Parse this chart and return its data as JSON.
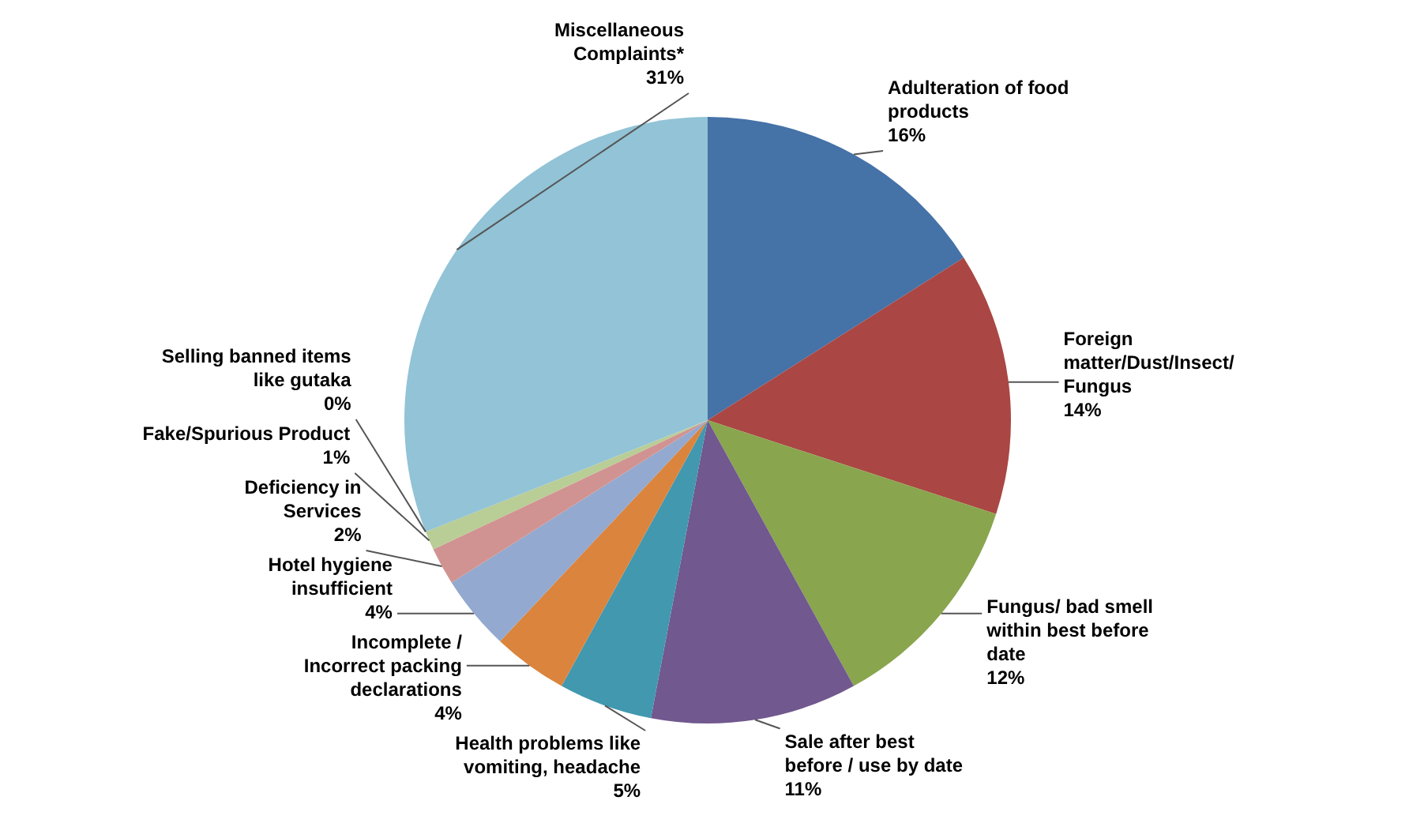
{
  "chart_data": {
    "type": "pie",
    "categories": [
      "Adulteration of food products",
      "Foreign matter/Dust/Insect/ Fungus",
      "Fungus/ bad smell within best before date",
      "Sale after best before / use by date",
      "Health problems like vomiting, headache",
      "Incomplete / Incorrect packing declarations",
      "Hotel hygiene insufficient",
      "Deficiency in Services",
      "Fake/Spurious Product",
      "Selling banned items like gutaka",
      "Miscellaneous Complaints*"
    ],
    "values": [
      16,
      14,
      12,
      11,
      5,
      4,
      4,
      2,
      1,
      0,
      31
    ],
    "value_labels": [
      "16%",
      "14%",
      "12%",
      "11%",
      "5%",
      "4%",
      "4%",
      "2%",
      "1%",
      "0%",
      "31%"
    ],
    "colors": [
      "#4572a7",
      "#aa4643",
      "#89a54e",
      "#71588f",
      "#4198af",
      "#db843d",
      "#93a9cf",
      "#d19392",
      "#b9cd96",
      "#a99bbd",
      "#92c3d6"
    ]
  }
}
